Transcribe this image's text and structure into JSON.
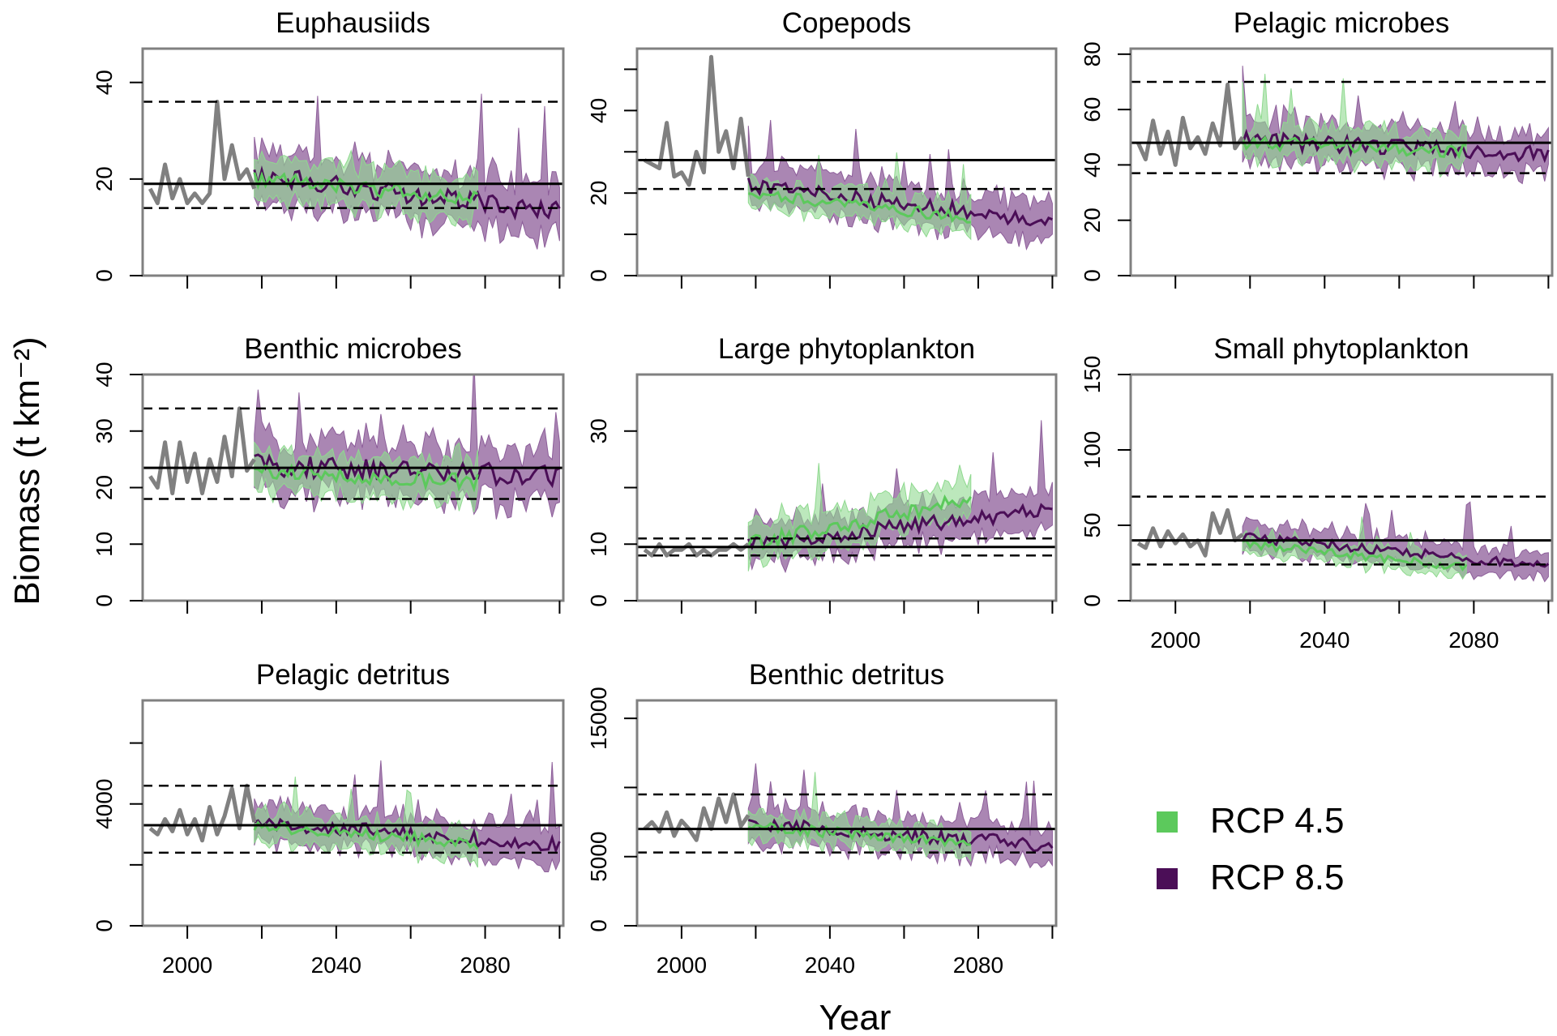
{
  "figure": {
    "ylabel": "Biomass (t km⁻²)",
    "xlabel": "Year"
  },
  "colors": {
    "history": "#808080",
    "rcp45_line": "#5cc95c",
    "rcp45_fill": "#8fd98f",
    "rcp85_line": "#4b0e57",
    "rcp85_fill": "#8d5e9a",
    "reference": "#000000",
    "frame": "#808080"
  },
  "legend": {
    "items": [
      {
        "label": "RCP 4.5",
        "color": "#5cc95c"
      },
      {
        "label": "RCP 8.5",
        "color": "#4b0e57"
      }
    ]
  },
  "chart_data": [
    {
      "type": "line",
      "title": "Euphausiids",
      "xlim": [
        1988,
        2101
      ],
      "ylim": [
        0,
        47
      ],
      "yticks": [
        0,
        20,
        40
      ],
      "ytick_labels": [
        "0",
        "20",
        "40"
      ],
      "xticks": [
        2000,
        2020,
        2040,
        2060,
        2080,
        2100
      ],
      "xtick_labels": [],
      "history": {
        "years": [
          1990,
          1992,
          1994,
          1996,
          1998,
          2000,
          2002,
          2004,
          2006,
          2008,
          2010,
          2012,
          2014,
          2016,
          2018
        ],
        "values": [
          18,
          15,
          23,
          16,
          20,
          15,
          17,
          15,
          17,
          36,
          20,
          27,
          20,
          22,
          18
        ]
      },
      "rcp45": {
        "mean": 18,
        "end": 16,
        "trend_start": 20,
        "spread": 6,
        "seed": 11
      },
      "rcp85": {
        "mean": 18,
        "end": 13,
        "trend_start": 21,
        "spread": 8,
        "seed": 23
      },
      "ref_line": 19,
      "ref_lower": 14,
      "ref_upper": 36,
      "series": [
        {
          "name": "RCP 4.5"
        },
        {
          "name": "RCP 8.5"
        }
      ]
    },
    {
      "type": "line",
      "title": "Copepods",
      "xlim": [
        1988,
        2101
      ],
      "ylim": [
        0,
        55
      ],
      "yticks": [
        0,
        10,
        20,
        30,
        40,
        50
      ],
      "ytick_labels": [
        "0",
        "",
        "20",
        "",
        "40",
        ""
      ],
      "xticks": [
        2000,
        2020,
        2040,
        2060,
        2080,
        2100
      ],
      "xtick_labels": [],
      "history": {
        "years": [
          1990,
          1992,
          1994,
          1996,
          1998,
          2000,
          2002,
          2004,
          2006,
          2008,
          2010,
          2012,
          2014,
          2016,
          2018
        ],
        "values": [
          28,
          27,
          26,
          37,
          24,
          25,
          22,
          30,
          25,
          53,
          30,
          35,
          26,
          38,
          24
        ]
      },
      "rcp45": {
        "mean": 20,
        "end": 14,
        "trend_start": 20,
        "spread": 5,
        "seed": 31
      },
      "rcp85": {
        "mean": 20,
        "end": 13,
        "trend_start": 22,
        "spread": 7,
        "seed": 37
      },
      "ref_line": 28,
      "ref_lower": 21,
      "ref_upper": 55,
      "series": [
        {
          "name": "RCP 4.5"
        },
        {
          "name": "RCP 8.5"
        }
      ]
    },
    {
      "type": "line",
      "title": "Pelagic microbes",
      "xlim": [
        1988,
        2101
      ],
      "ylim": [
        0,
        82
      ],
      "yticks": [
        0,
        20,
        40,
        60,
        80
      ],
      "ytick_labels": [
        "0",
        "20",
        "40",
        "60",
        "80"
      ],
      "xticks": [
        2000,
        2020,
        2040,
        2060,
        2080,
        2100
      ],
      "xtick_labels": [],
      "history": {
        "years": [
          1990,
          1992,
          1994,
          1996,
          1998,
          2000,
          2002,
          2004,
          2006,
          2008,
          2010,
          2012,
          2014,
          2016,
          2018
        ],
        "values": [
          48,
          42,
          56,
          44,
          52,
          40,
          57,
          46,
          50,
          44,
          55,
          47,
          69,
          46,
          50
        ]
      },
      "rcp45": {
        "mean": 47,
        "end": 45,
        "trend_start": 48,
        "spread": 9,
        "seed": 41
      },
      "rcp85": {
        "mean": 48,
        "end": 44,
        "trend_start": 49,
        "spread": 11,
        "seed": 43
      },
      "ref_line": 48,
      "ref_lower": 37,
      "ref_upper": 70,
      "series": [
        {
          "name": "RCP 4.5"
        },
        {
          "name": "RCP 8.5"
        }
      ]
    },
    {
      "type": "line",
      "title": "Benthic microbes",
      "xlim": [
        1988,
        2101
      ],
      "ylim": [
        0,
        40
      ],
      "yticks": [
        0,
        10,
        20,
        30,
        40
      ],
      "ytick_labels": [
        "0",
        "10",
        "20",
        "30",
        "40"
      ],
      "xticks": [
        2000,
        2020,
        2040,
        2060,
        2080,
        2100
      ],
      "xtick_labels": [],
      "history": {
        "years": [
          1990,
          1992,
          1994,
          1996,
          1998,
          2000,
          2002,
          2004,
          2006,
          2008,
          2010,
          2012,
          2014,
          2016,
          2018
        ],
        "values": [
          22,
          20,
          28,
          19,
          28,
          21,
          26,
          19,
          25,
          21,
          29,
          22,
          34,
          23,
          25
        ]
      },
      "rcp45": {
        "mean": 22,
        "end": 21,
        "trend_start": 23,
        "spread": 5,
        "seed": 53
      },
      "rcp85": {
        "mean": 24,
        "end": 22,
        "trend_start": 24,
        "spread": 7,
        "seed": 59
      },
      "ref_line": 23.5,
      "ref_lower": 18,
      "ref_upper": 34,
      "series": [
        {
          "name": "RCP 4.5"
        },
        {
          "name": "RCP 8.5"
        }
      ]
    },
    {
      "type": "line",
      "title": "Large phytoplankton",
      "xlim": [
        1988,
        2101
      ],
      "ylim": [
        0,
        40
      ],
      "yticks": [
        0,
        10,
        20,
        30
      ],
      "ytick_labels": [
        "0",
        "10",
        "",
        "30"
      ],
      "xticks": [
        2000,
        2020,
        2040,
        2060,
        2080,
        2100
      ],
      "xtick_labels": [],
      "history": {
        "years": [
          1990,
          1992,
          1994,
          1996,
          1998,
          2000,
          2002,
          2004,
          2006,
          2008,
          2010,
          2012,
          2014,
          2016,
          2018
        ],
        "values": [
          9,
          8,
          10,
          8,
          9,
          9,
          10,
          8,
          9,
          8,
          9,
          9,
          10,
          9,
          10
        ]
      },
      "rcp45": {
        "mean": 11,
        "end": 18,
        "trend_start": 10,
        "spread": 5,
        "seed": 61
      },
      "rcp85": {
        "mean": 11,
        "end": 16,
        "trend_start": 10,
        "spread": 5,
        "seed": 67
      },
      "ref_line": 9.5,
      "ref_lower": 8,
      "ref_upper": 11,
      "series": [
        {
          "name": "RCP 4.5"
        },
        {
          "name": "RCP 8.5"
        }
      ]
    },
    {
      "type": "line",
      "title": "Small phytoplankton",
      "xlim": [
        1988,
        2101
      ],
      "ylim": [
        0,
        150
      ],
      "yticks": [
        0,
        50,
        100,
        150
      ],
      "ytick_labels": [
        "0",
        "50",
        "100",
        "150"
      ],
      "xticks": [
        2000,
        2020,
        2040,
        2060,
        2080,
        2100
      ],
      "xtick_labels": [
        "2000",
        "",
        "2040",
        "",
        "2080",
        ""
      ],
      "history": {
        "years": [
          1990,
          1992,
          1994,
          1996,
          1998,
          2000,
          2002,
          2004,
          2006,
          2008,
          2010,
          2012,
          2014,
          2016,
          2018
        ],
        "values": [
          38,
          35,
          48,
          36,
          46,
          38,
          44,
          36,
          40,
          30,
          58,
          45,
          60,
          40,
          44
        ]
      },
      "rcp45": {
        "mean": 32,
        "end": 22,
        "trend_start": 38,
        "spread": 10,
        "seed": 71
      },
      "rcp85": {
        "mean": 35,
        "end": 23,
        "trend_start": 42,
        "spread": 13,
        "seed": 73
      },
      "ref_line": 40,
      "ref_lower": 24,
      "ref_upper": 69,
      "series": [
        {
          "name": "RCP 4.5"
        },
        {
          "name": "RCP 8.5"
        }
      ]
    },
    {
      "type": "line",
      "title": "Pelagic detritus",
      "xlim": [
        1988,
        2101
      ],
      "ylim": [
        0,
        7400
      ],
      "yticks": [
        0,
        2000,
        4000,
        6000
      ],
      "ytick_labels": [
        "0",
        "",
        "4000",
        ""
      ],
      "xticks": [
        2000,
        2020,
        2040,
        2060,
        2080,
        2100
      ],
      "xtick_labels": [
        "2000",
        "",
        "2040",
        "",
        "2080",
        ""
      ],
      "history": {
        "years": [
          1990,
          1992,
          1994,
          1996,
          1998,
          2000,
          2002,
          2004,
          2006,
          2008,
          2010,
          2012,
          2014,
          2016,
          2018
        ],
        "values": [
          3200,
          3000,
          3500,
          3100,
          3800,
          3000,
          3500,
          2800,
          3900,
          3000,
          3600,
          4500,
          3200,
          4600,
          3400
        ]
      },
      "rcp45": {
        "mean": 3000,
        "end": 2700,
        "trend_start": 3300,
        "spread": 700,
        "seed": 81
      },
      "rcp85": {
        "mean": 3100,
        "end": 2650,
        "trend_start": 3400,
        "spread": 900,
        "seed": 83
      },
      "ref_line": 3300,
      "ref_lower": 2400,
      "ref_upper": 4600,
      "series": [
        {
          "name": "RCP 4.5"
        },
        {
          "name": "RCP 8.5"
        }
      ]
    },
    {
      "type": "line",
      "title": "Benthic detritus",
      "xlim": [
        1988,
        2101
      ],
      "ylim": [
        0,
        16300
      ],
      "yticks": [
        0,
        5000,
        10000,
        15000
      ],
      "ytick_labels": [
        "0",
        "5000",
        "",
        "15000"
      ],
      "xticks": [
        2000,
        2020,
        2040,
        2060,
        2080,
        2100
      ],
      "xtick_labels": [
        "2000",
        "",
        "2040",
        "",
        "2080",
        ""
      ],
      "history": {
        "years": [
          1990,
          1992,
          1994,
          1996,
          1998,
          2000,
          2002,
          2004,
          2006,
          2008,
          2010,
          2012,
          2014,
          2016,
          2018
        ],
        "values": [
          7000,
          7500,
          6800,
          8200,
          6500,
          7600,
          7000,
          6200,
          8500,
          7000,
          9200,
          7500,
          9500,
          7200,
          8000
        ]
      },
      "rcp45": {
        "mean": 6600,
        "end": 6000,
        "trend_start": 7200,
        "spread": 1400,
        "seed": 91
      },
      "rcp85": {
        "mean": 6800,
        "end": 5800,
        "trend_start": 7400,
        "spread": 1900,
        "seed": 97
      },
      "ref_line": 7000,
      "ref_lower": 5300,
      "ref_upper": 9500,
      "series": [
        {
          "name": "RCP 4.5"
        },
        {
          "name": "RCP 8.5"
        }
      ]
    }
  ]
}
